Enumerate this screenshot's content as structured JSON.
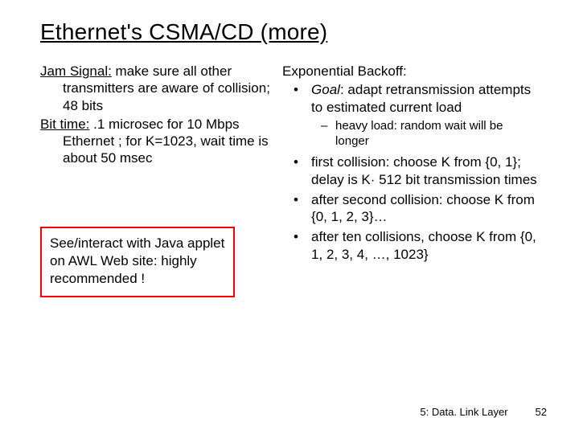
{
  "title": "Ethernet's CSMA/CD (more)",
  "left": {
    "jam_label": "Jam Signal:",
    "jam_text": " make sure all other transmitters are aware of collision; 48 bits",
    "bit_label": "Bit time:",
    "bit_text": " .1 microsec for 10 Mbps Ethernet ; for K=1023, wait time is about 50 msec",
    "callout": "See/interact with Java applet on AWL Web site: highly recommended !"
  },
  "right": {
    "head": "Exponential Backoff:",
    "goal_label": "Goal",
    "goal_rest": ": adapt retransmission attempts to estimated current load",
    "sub1": "heavy load: random wait will be longer",
    "b2": "first collision: choose K from {0, 1}; delay is K· 512 bit transmission times",
    "b3": "after second collision: choose K from {0, 1, 2, 3}…",
    "b4": "after ten collisions, choose K from {0, 1, 2, 3, 4, …, 1023}"
  },
  "footer": {
    "section": "5: Data. Link Layer",
    "page": "52"
  },
  "style": {
    "title_fontsize": 28,
    "body_fontsize": 17,
    "sub_fontsize": 15,
    "footer_fontsize": 13,
    "text_color": "#000000",
    "background_color": "#ffffff",
    "callout_border_color": "#ff0000"
  }
}
